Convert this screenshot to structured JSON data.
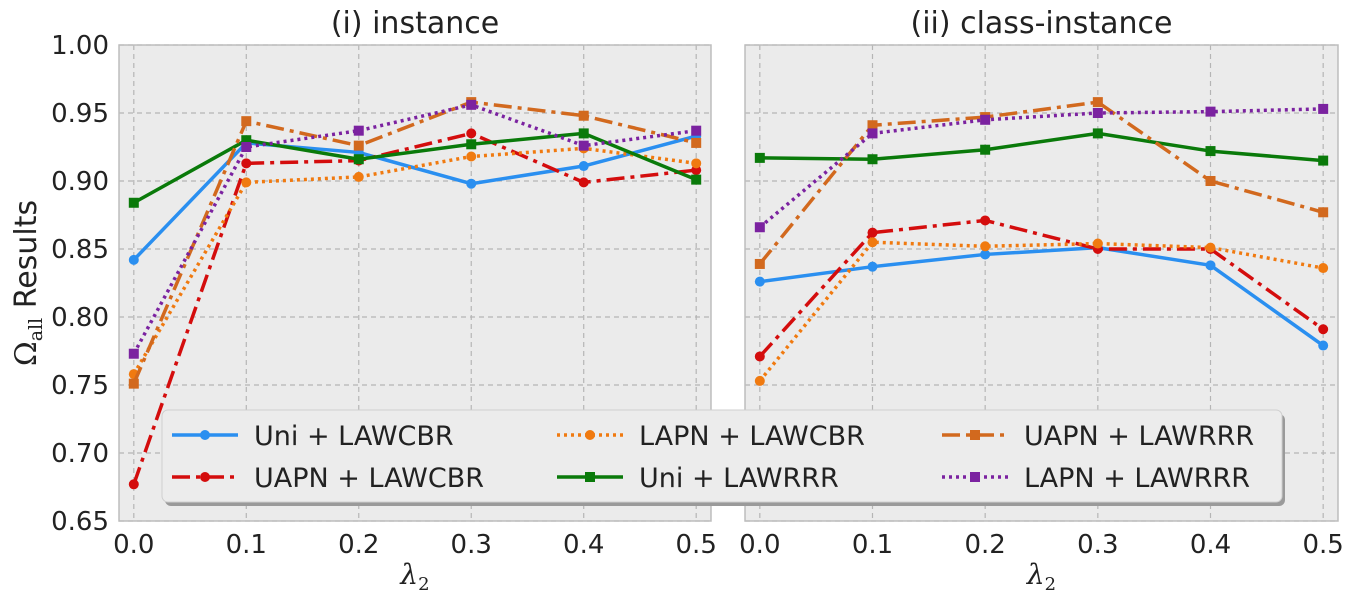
{
  "chart_data": {
    "type": "line",
    "ylabel": "Ω_all Results",
    "ylabel_symbol": "Ω",
    "ylabel_subscript": "all",
    "ylabel_rest": " Results",
    "ylim": [
      0.65,
      1.0
    ],
    "yticks": [
      "0.65",
      "0.70",
      "0.75",
      "0.80",
      "0.85",
      "0.90",
      "0.95",
      "1.00"
    ],
    "x": [
      0.0,
      0.1,
      0.2,
      0.3,
      0.4,
      0.5
    ],
    "xticks": [
      "0.0",
      "0.1",
      "0.2",
      "0.3",
      "0.4",
      "0.5"
    ],
    "xlabel": "λ",
    "xlabel_subscript": "2",
    "legend_position": "lower-center",
    "colors": {
      "uni_cbr": "#2a8ff0",
      "uapn_cbr": "#d40d0d",
      "lapn_cbr": "#f07a10",
      "uni_rrr": "#0a7a0a",
      "uapn_rrr": "#d2691e",
      "lapn_rrr": "#7b22a0"
    },
    "panels": [
      {
        "title": "(i) instance",
        "series": [
          {
            "key": "uni_cbr",
            "name": "Uni + LAWCBR",
            "values": [
              0.842,
              0.928,
              0.921,
              0.898,
              0.911,
              0.933
            ]
          },
          {
            "key": "uapn_cbr",
            "name": "UAPN + LAWCBR",
            "values": [
              0.677,
              0.913,
              0.915,
              0.935,
              0.899,
              0.908
            ]
          },
          {
            "key": "lapn_cbr",
            "name": "LAPN + LAWCBR",
            "values": [
              0.758,
              0.899,
              0.903,
              0.918,
              0.924,
              0.913
            ]
          },
          {
            "key": "uni_rrr",
            "name": "Uni + LAWRRR",
            "values": [
              0.884,
              0.93,
              0.916,
              0.927,
              0.935,
              0.901
            ]
          },
          {
            "key": "uapn_rrr",
            "name": "UAPN + LAWRRR",
            "values": [
              0.751,
              0.944,
              0.926,
              0.958,
              0.948,
              0.928
            ]
          },
          {
            "key": "lapn_rrr",
            "name": "LAPN + LAWRRR",
            "values": [
              0.773,
              0.925,
              0.937,
              0.956,
              0.926,
              0.937
            ]
          }
        ]
      },
      {
        "title": "(ii) class-instance",
        "series": [
          {
            "key": "uni_cbr",
            "name": "Uni + LAWCBR",
            "values": [
              0.826,
              0.837,
              0.846,
              0.851,
              0.838,
              0.779
            ]
          },
          {
            "key": "uapn_cbr",
            "name": "UAPN + LAWCBR",
            "values": [
              0.771,
              0.862,
              0.871,
              0.85,
              0.85,
              0.791
            ]
          },
          {
            "key": "lapn_cbr",
            "name": "LAPN + LAWCBR",
            "values": [
              0.753,
              0.855,
              0.852,
              0.854,
              0.851,
              0.836
            ]
          },
          {
            "key": "uni_rrr",
            "name": "Uni + LAWRRR",
            "values": [
              0.917,
              0.916,
              0.923,
              0.935,
              0.922,
              0.915
            ]
          },
          {
            "key": "uapn_rrr",
            "name": "UAPN + LAWRRR",
            "values": [
              0.839,
              0.941,
              0.947,
              0.958,
              0.9,
              0.877
            ]
          },
          {
            "key": "lapn_rrr",
            "name": "LAPN + LAWRRR",
            "values": [
              0.866,
              0.935,
              0.945,
              0.95,
              0.951,
              0.953
            ]
          }
        ]
      }
    ],
    "legend": [
      {
        "key": "uni_cbr",
        "label": "Uni + LAWCBR"
      },
      {
        "key": "lapn_cbr",
        "label": "LAPN + LAWCBR"
      },
      {
        "key": "uapn_rrr",
        "label": "UAPN + LAWRRR"
      },
      {
        "key": "uapn_cbr",
        "label": "UAPN + LAWCBR"
      },
      {
        "key": "uni_rrr",
        "label": "Uni + LAWRRR"
      },
      {
        "key": "lapn_rrr",
        "label": "LAPN + LAWRRR"
      }
    ]
  }
}
